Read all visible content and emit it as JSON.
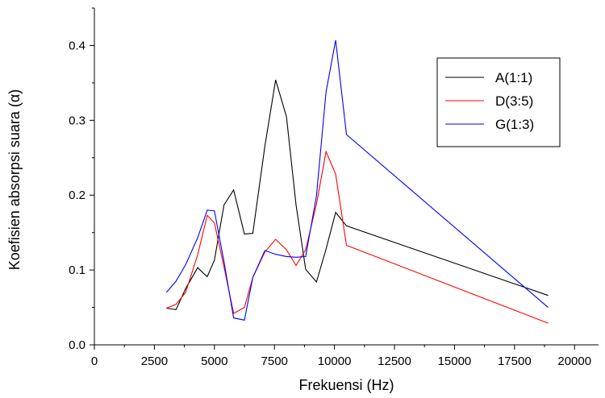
{
  "chart_data": {
    "type": "line",
    "title": "",
    "xlabel": "Frekuensi (Hz)",
    "ylabel": "Koefisien absorpsi suara (α)",
    "xlim": [
      0,
      21000
    ],
    "ylim": [
      0,
      0.45
    ],
    "x_ticks": [
      0,
      2500,
      5000,
      7500,
      10000,
      12500,
      15000,
      17500,
      20000
    ],
    "y_ticks": [
      0.0,
      0.1,
      0.2,
      0.3,
      0.4
    ],
    "x_tick_labels": [
      "0",
      "2500",
      "5000",
      "7500",
      "10000",
      "12500",
      "15000",
      "17500",
      "20000"
    ],
    "y_tick_labels": [
      "0.0",
      "0.1",
      "0.2",
      "0.3",
      "0.4"
    ],
    "grid": false,
    "legend_position": "top-right",
    "series": [
      {
        "name": "A(1:1)",
        "color": "#000000",
        "x": [
          3000,
          3400,
          3800,
          4300,
          4700,
          5000,
          5400,
          5800,
          6250,
          6600,
          7100,
          7550,
          8000,
          8400,
          8800,
          9250,
          9650,
          10050,
          10500,
          18900
        ],
        "y": [
          0.049,
          0.047,
          0.075,
          0.103,
          0.091,
          0.113,
          0.187,
          0.207,
          0.148,
          0.149,
          0.265,
          0.354,
          0.305,
          0.187,
          0.101,
          0.084,
          0.128,
          0.177,
          0.159,
          0.066
        ]
      },
      {
        "name": "D(3:5)",
        "color": "#ff0000",
        "x": [
          3000,
          3400,
          3800,
          4300,
          4700,
          5000,
          5400,
          5800,
          6250,
          6600,
          7100,
          7550,
          8000,
          8400,
          8800,
          9250,
          9650,
          10050,
          10500,
          18900
        ],
        "y": [
          0.049,
          0.054,
          0.07,
          0.12,
          0.173,
          0.163,
          0.104,
          0.042,
          0.05,
          0.09,
          0.124,
          0.141,
          0.127,
          0.106,
          0.127,
          0.188,
          0.258,
          0.228,
          0.133,
          0.029
        ]
      },
      {
        "name": "G(1:3)",
        "color": "#0000ff",
        "x": [
          3000,
          3400,
          3800,
          4300,
          4700,
          5000,
          5400,
          5800,
          6250,
          6600,
          7100,
          7550,
          8000,
          8400,
          8800,
          9250,
          9650,
          10050,
          10500,
          18900
        ],
        "y": [
          0.07,
          0.085,
          0.107,
          0.143,
          0.18,
          0.179,
          0.111,
          0.036,
          0.033,
          0.09,
          0.126,
          0.121,
          0.118,
          0.117,
          0.118,
          0.199,
          0.338,
          0.407,
          0.281,
          0.05
        ]
      }
    ]
  }
}
